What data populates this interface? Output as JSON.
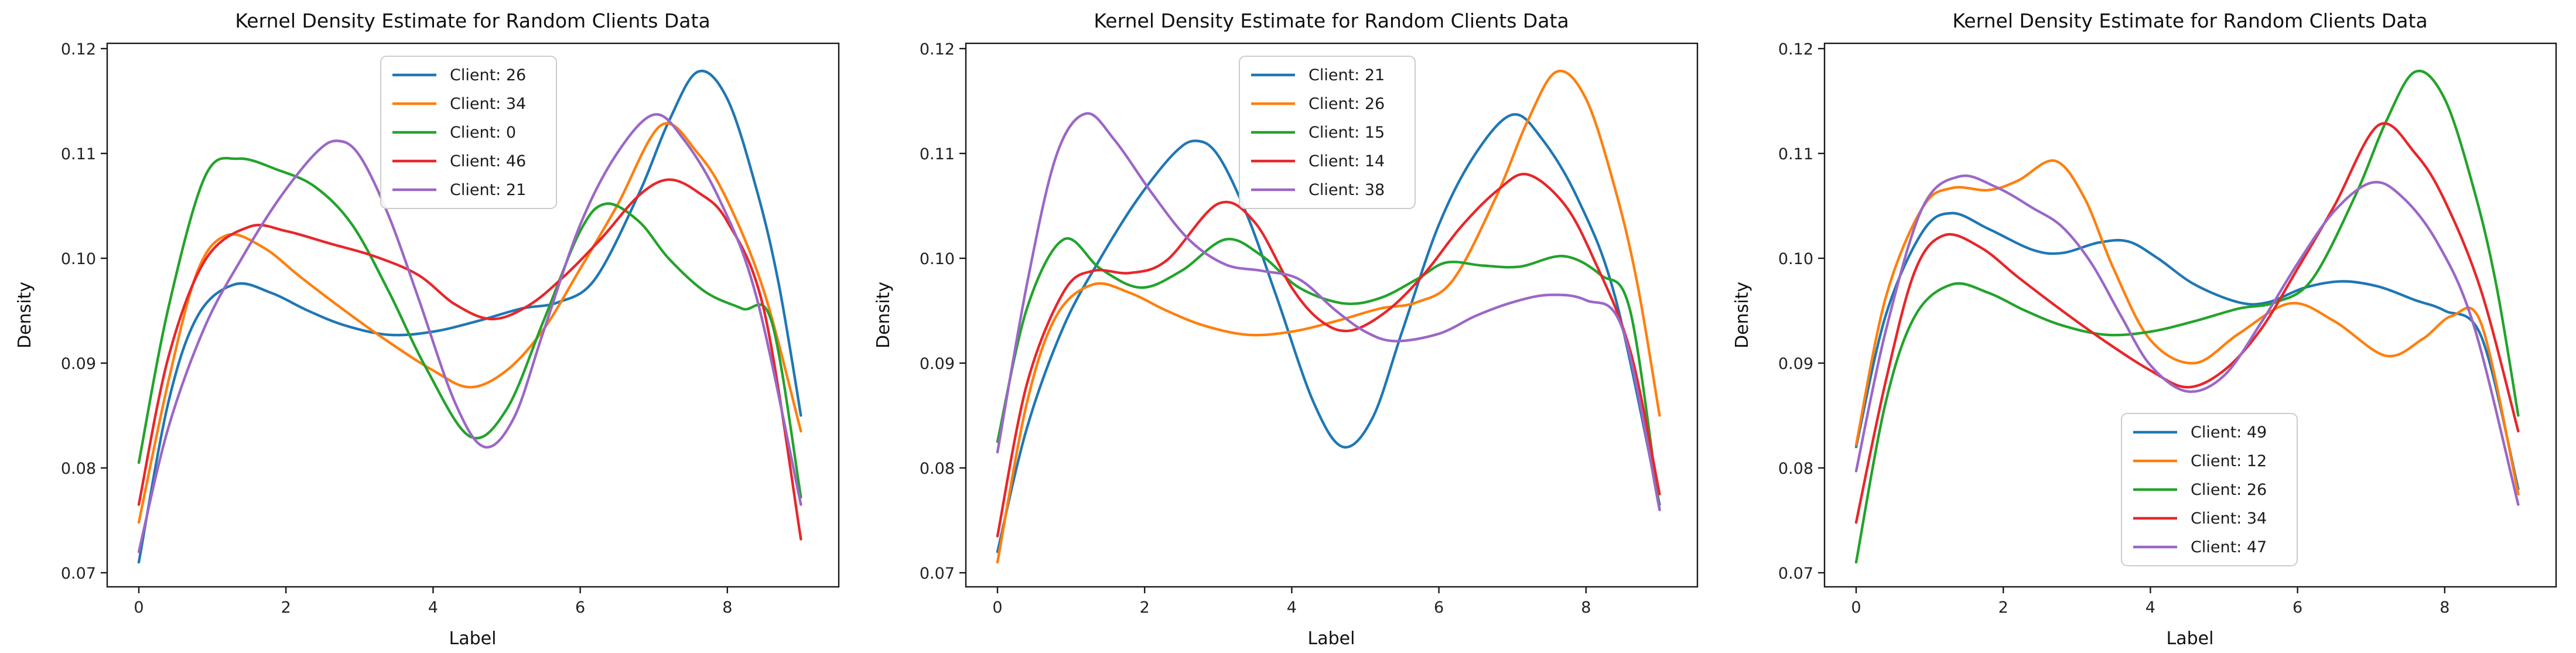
{
  "page": {
    "background": "#ffffff"
  },
  "palette": {
    "blue": "#1f77b4",
    "orange": "#ff7f0e",
    "green": "#23a32c",
    "red": "#e8262a",
    "purple": "#9b67c6"
  },
  "chart_data": [
    {
      "type": "line",
      "title": "Kernel Density Estimate for Random Clients Data",
      "xlabel": "Label",
      "ylabel": "Density",
      "x_ticks": [
        0,
        2,
        4,
        6,
        8
      ],
      "y_ticks": [
        0.07,
        0.08,
        0.09,
        0.1,
        0.11,
        0.12
      ],
      "xlim": [
        -0.43,
        9.51
      ],
      "ylim": [
        0.0687,
        0.1205
      ],
      "grid": false,
      "legend_position": "upper-center",
      "series": [
        {
          "name": "Client: 26",
          "color": "#1f77b4",
          "x": [
            0,
            0.4,
            0.8,
            1.3,
            1.8,
            2.3,
            2.8,
            3.4,
            4.0,
            4.6,
            5.2,
            5.7,
            6.2,
            6.8,
            7.2,
            7.6,
            8.0,
            8.4,
            8.7,
            9.0
          ],
          "y": [
            0.071,
            0.0862,
            0.0945,
            0.0975,
            0.0967,
            0.095,
            0.0936,
            0.0927,
            0.093,
            0.094,
            0.0952,
            0.0958,
            0.098,
            0.1062,
            0.113,
            0.1178,
            0.1152,
            0.1065,
            0.0975,
            0.085
          ]
        },
        {
          "name": "Client: 34",
          "color": "#ff7f0e",
          "x": [
            0,
            0.4,
            0.8,
            1.2,
            1.7,
            2.2,
            2.8,
            3.4,
            4.0,
            4.5,
            5.0,
            5.5,
            6.0,
            6.5,
            7.1,
            7.6,
            8.0,
            8.5,
            9.0
          ],
          "y": [
            0.0748,
            0.0882,
            0.0988,
            0.1022,
            0.101,
            0.0982,
            0.095,
            0.092,
            0.0893,
            0.0877,
            0.0893,
            0.0932,
            0.099,
            0.105,
            0.1127,
            0.11,
            0.1055,
            0.0968,
            0.0835
          ]
        },
        {
          "name": "Client: 0",
          "color": "#23a32c",
          "x": [
            0,
            0.4,
            0.9,
            1.35,
            1.9,
            2.4,
            2.9,
            3.4,
            3.9,
            4.5,
            5.0,
            5.5,
            6.0,
            6.35,
            6.8,
            7.2,
            7.7,
            8.2,
            8.6,
            9.0
          ],
          "y": [
            0.0805,
            0.0952,
            0.1078,
            0.1095,
            0.1084,
            0.1068,
            0.1032,
            0.0968,
            0.0896,
            0.083,
            0.0856,
            0.094,
            0.1026,
            0.1052,
            0.1035,
            0.1,
            0.0968,
            0.0952,
            0.094,
            0.0772
          ]
        },
        {
          "name": "Client: 46",
          "color": "#e8262a",
          "x": [
            0,
            0.4,
            0.9,
            1.5,
            2.0,
            2.6,
            3.2,
            3.8,
            4.3,
            4.8,
            5.3,
            5.8,
            6.3,
            6.8,
            7.2,
            7.6,
            8.0,
            8.5,
            9.0
          ],
          "y": [
            0.0765,
            0.0905,
            0.0998,
            0.103,
            0.1026,
            0.1014,
            0.1002,
            0.0984,
            0.0956,
            0.0942,
            0.0955,
            0.0984,
            0.102,
            0.106,
            0.1075,
            0.1063,
            0.1035,
            0.095,
            0.0732
          ]
        },
        {
          "name": "Client: 21",
          "color": "#9b67c6",
          "x": [
            0,
            0.4,
            0.9,
            1.4,
            1.9,
            2.4,
            2.7,
            3.0,
            3.4,
            3.8,
            4.3,
            4.7,
            5.1,
            5.5,
            6.0,
            6.5,
            7.0,
            7.4,
            7.9,
            8.4,
            9.0
          ],
          "y": [
            0.072,
            0.0838,
            0.0935,
            0.1,
            0.1056,
            0.11,
            0.1112,
            0.1098,
            0.104,
            0.0962,
            0.0862,
            0.082,
            0.0848,
            0.093,
            0.1032,
            0.11,
            0.1137,
            0.1114,
            0.1055,
            0.0962,
            0.0765
          ]
        }
      ]
    },
    {
      "type": "line",
      "title": "Kernel Density Estimate for Random Clients Data",
      "xlabel": "Label",
      "ylabel": "Density",
      "x_ticks": [
        0,
        2,
        4,
        6,
        8
      ],
      "y_ticks": [
        0.07,
        0.08,
        0.09,
        0.1,
        0.11,
        0.12
      ],
      "xlim": [
        -0.43,
        9.51
      ],
      "ylim": [
        0.0687,
        0.1205
      ],
      "grid": false,
      "legend_position": "upper-center",
      "series": [
        {
          "name": "Client: 21",
          "color": "#1f77b4",
          "x": [
            0,
            0.4,
            0.9,
            1.4,
            1.9,
            2.4,
            2.7,
            3.0,
            3.4,
            3.8,
            4.3,
            4.7,
            5.1,
            5.5,
            6.0,
            6.5,
            7.0,
            7.4,
            7.9,
            8.4,
            9.0
          ],
          "y": [
            0.072,
            0.0838,
            0.0935,
            0.1,
            0.1056,
            0.11,
            0.1112,
            0.1098,
            0.104,
            0.0962,
            0.0862,
            0.082,
            0.0848,
            0.093,
            0.1032,
            0.11,
            0.1137,
            0.1114,
            0.1055,
            0.0962,
            0.0765
          ]
        },
        {
          "name": "Client: 26",
          "color": "#ff7f0e",
          "x": [
            0,
            0.4,
            0.8,
            1.3,
            1.8,
            2.3,
            2.8,
            3.4,
            4.0,
            4.6,
            5.2,
            5.7,
            6.2,
            6.8,
            7.2,
            7.6,
            8.0,
            8.4,
            8.7,
            9.0
          ],
          "y": [
            0.071,
            0.0862,
            0.0945,
            0.0975,
            0.0967,
            0.095,
            0.0936,
            0.0927,
            0.093,
            0.094,
            0.0952,
            0.0958,
            0.098,
            0.1062,
            0.113,
            0.1178,
            0.1152,
            0.1065,
            0.0975,
            0.085
          ]
        },
        {
          "name": "Client: 15",
          "color": "#23a32c",
          "x": [
            0,
            0.4,
            0.9,
            1.4,
            1.95,
            2.5,
            3.1,
            3.6,
            4.1,
            4.7,
            5.2,
            5.7,
            6.1,
            6.6,
            7.1,
            7.7,
            8.2,
            8.6,
            9.0
          ],
          "y": [
            0.0825,
            0.0952,
            0.1018,
            0.099,
            0.0972,
            0.0988,
            0.1018,
            0.1002,
            0.0972,
            0.0957,
            0.0962,
            0.098,
            0.0996,
            0.0993,
            0.0992,
            0.1002,
            0.0984,
            0.095,
            0.076
          ]
        },
        {
          "name": "Client: 14",
          "color": "#e8262a",
          "x": [
            0,
            0.4,
            0.9,
            1.3,
            1.8,
            2.3,
            3.0,
            3.5,
            4.0,
            4.4,
            4.8,
            5.3,
            5.8,
            6.3,
            6.8,
            7.2,
            7.7,
            8.1,
            8.6,
            9.0
          ],
          "y": [
            0.0735,
            0.088,
            0.0968,
            0.0988,
            0.0986,
            0.0998,
            0.1052,
            0.1034,
            0.0972,
            0.094,
            0.0931,
            0.095,
            0.0985,
            0.103,
            0.1065,
            0.108,
            0.1052,
            0.1,
            0.0912,
            0.0775
          ]
        },
        {
          "name": "Client: 38",
          "color": "#9b67c6",
          "x": [
            0,
            0.4,
            0.8,
            1.2,
            1.6,
            2.1,
            2.6,
            3.1,
            3.6,
            4.1,
            4.6,
            5.0,
            5.4,
            6.0,
            6.5,
            7.0,
            7.5,
            8.0,
            8.5,
            9.0
          ],
          "y": [
            0.0815,
            0.0975,
            0.1098,
            0.1138,
            0.1112,
            0.1062,
            0.1018,
            0.0994,
            0.0988,
            0.098,
            0.095,
            0.093,
            0.0921,
            0.0928,
            0.0945,
            0.0958,
            0.0965,
            0.096,
            0.0932,
            0.076
          ]
        }
      ]
    },
    {
      "type": "line",
      "title": "Kernel Density Estimate for Random Clients Data",
      "xlabel": "Label",
      "ylabel": "Density",
      "x_ticks": [
        0,
        2,
        4,
        6,
        8
      ],
      "y_ticks": [
        0.07,
        0.08,
        0.09,
        0.1,
        0.11,
        0.12
      ],
      "xlim": [
        -0.43,
        9.51
      ],
      "ylim": [
        0.0687,
        0.1205
      ],
      "grid": false,
      "legend_position": "lower-center",
      "series": [
        {
          "name": "Client: 49",
          "color": "#1f77b4",
          "x": [
            0,
            0.4,
            0.9,
            1.3,
            1.8,
            2.4,
            2.8,
            3.3,
            3.7,
            4.1,
            4.6,
            5.2,
            5.6,
            6.1,
            6.6,
            7.1,
            7.6,
            8.0,
            8.5,
            9.0
          ],
          "y": [
            0.082,
            0.0945,
            0.1025,
            0.1043,
            0.1028,
            0.1008,
            0.1005,
            0.1015,
            0.1016,
            0.1,
            0.0975,
            0.0958,
            0.0958,
            0.0972,
            0.0978,
            0.0973,
            0.096,
            0.095,
            0.0925,
            0.078
          ]
        },
        {
          "name": "Client: 12",
          "color": "#ff7f0e",
          "x": [
            0,
            0.4,
            0.9,
            1.3,
            1.8,
            2.2,
            2.7,
            3.1,
            3.5,
            4.0,
            4.6,
            5.2,
            5.9,
            6.5,
            7.2,
            7.7,
            8.1,
            8.5,
            9.0
          ],
          "y": [
            0.0822,
            0.0962,
            0.1048,
            0.1067,
            0.1065,
            0.1074,
            0.1093,
            0.1058,
            0.099,
            0.0922,
            0.09,
            0.0928,
            0.0957,
            0.094,
            0.0907,
            0.0923,
            0.0945,
            0.0937,
            0.0775
          ]
        },
        {
          "name": "Client: 26",
          "color": "#23a32c",
          "x": [
            0,
            0.4,
            0.8,
            1.3,
            1.8,
            2.3,
            2.8,
            3.4,
            4.0,
            4.6,
            5.2,
            5.7,
            6.2,
            6.8,
            7.2,
            7.6,
            8.0,
            8.4,
            8.7,
            9.0
          ],
          "y": [
            0.071,
            0.0862,
            0.0945,
            0.0975,
            0.0967,
            0.095,
            0.0936,
            0.0927,
            0.093,
            0.094,
            0.0952,
            0.0958,
            0.098,
            0.1062,
            0.113,
            0.1178,
            0.1152,
            0.1065,
            0.0975,
            0.085
          ]
        },
        {
          "name": "Client: 34",
          "color": "#e8262a",
          "x": [
            0,
            0.4,
            0.8,
            1.2,
            1.7,
            2.2,
            2.8,
            3.4,
            4.0,
            4.5,
            5.0,
            5.5,
            6.0,
            6.5,
            7.1,
            7.6,
            8.0,
            8.5,
            9.0
          ],
          "y": [
            0.0748,
            0.0882,
            0.0988,
            0.1022,
            0.101,
            0.0982,
            0.095,
            0.092,
            0.0893,
            0.0877,
            0.0893,
            0.0932,
            0.099,
            0.105,
            0.1127,
            0.11,
            0.1055,
            0.0968,
            0.0835
          ]
        },
        {
          "name": "Client: 47",
          "color": "#9b67c6",
          "x": [
            0,
            0.4,
            0.9,
            1.4,
            1.9,
            2.4,
            2.8,
            3.2,
            3.6,
            4.0,
            4.5,
            5.0,
            5.5,
            6.0,
            6.5,
            7.0,
            7.4,
            7.9,
            8.4,
            9.0
          ],
          "y": [
            0.0797,
            0.093,
            0.1048,
            0.1078,
            0.1068,
            0.1048,
            0.103,
            0.0995,
            0.0945,
            0.0898,
            0.0873,
            0.0888,
            0.0938,
            0.0995,
            0.1045,
            0.1072,
            0.106,
            0.1015,
            0.0935,
            0.0765
          ]
        }
      ]
    }
  ]
}
